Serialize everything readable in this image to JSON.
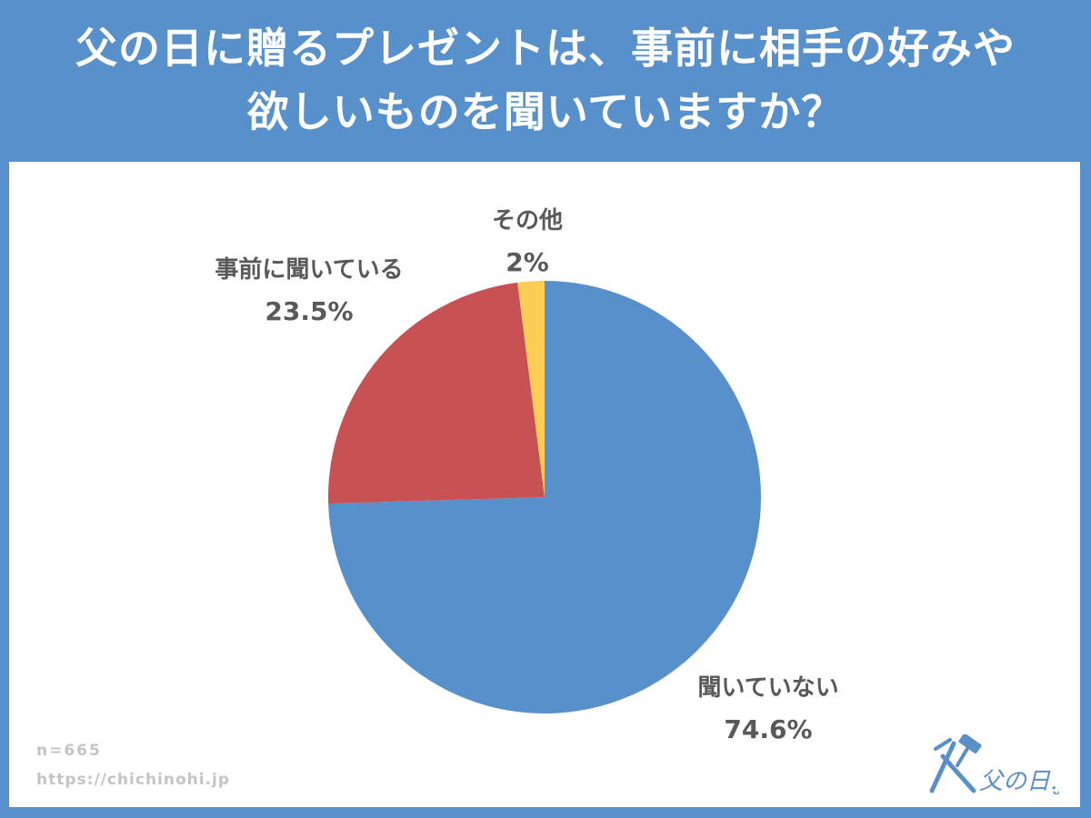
{
  "header": {
    "title_line1": "父の日に贈るプレゼントは、事前に相手の好みや",
    "title_line2": "欲しいものを聞いていますか？"
  },
  "chart_data": {
    "type": "pie",
    "title": "父の日に贈るプレゼントは、事前に相手の好みや欲しいものを聞いていますか？",
    "start": "12 o'clock",
    "direction": "clockwise",
    "slices": [
      {
        "label": "聞いていない",
        "value": 74.6,
        "value_label": "74.6%",
        "color": "#5890cb"
      },
      {
        "label": "事前に聞いている",
        "value": 23.5,
        "value_label": "23.5%",
        "color": "#c85253"
      },
      {
        "label": "その他",
        "value": 2,
        "value_label": "2%",
        "color": "#fbcd55"
      }
    ]
  },
  "footer": {
    "sample_size": "n=665",
    "url": "https://chichinohi.jp"
  },
  "logo": {
    "text": "父の日.jp",
    "color": "#5b8fc7"
  },
  "colors": {
    "background": "#5890cb",
    "panel": "#ffffff",
    "label_text": "#595959",
    "footnote_text": "#c4c4c4"
  }
}
